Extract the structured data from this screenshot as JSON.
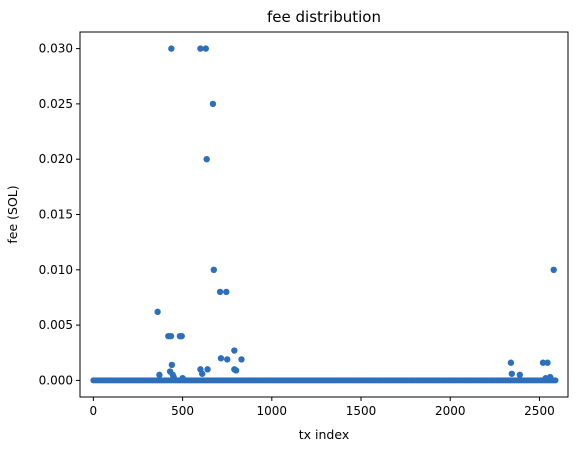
{
  "chart_data": {
    "type": "scatter",
    "title": "fee distribution",
    "xlabel": "tx index",
    "ylabel": "fee (SOL)",
    "xlim": [
      -75,
      2660
    ],
    "ylim": [
      -0.0015,
      0.0315
    ],
    "xticks": [
      0,
      500,
      1000,
      1500,
      2000,
      2500
    ],
    "xtick_labels": [
      "0",
      "500",
      "1000",
      "1500",
      "2000",
      "2500"
    ],
    "yticks": [
      0.0,
      0.005,
      0.01,
      0.015,
      0.02,
      0.025,
      0.03
    ],
    "ytick_labels": [
      "0.000",
      "0.005",
      "0.010",
      "0.015",
      "0.020",
      "0.025",
      "0.030"
    ],
    "grid": false,
    "marker_color": "#2c6fbb",
    "baseline": {
      "x_start": 0,
      "x_end": 2590,
      "step": 10,
      "y": 5e-06
    },
    "points": [
      {
        "x": 360,
        "y": 0.0062
      },
      {
        "x": 370,
        "y": 0.0005
      },
      {
        "x": 420,
        "y": 0.004
      },
      {
        "x": 435,
        "y": 0.004
      },
      {
        "x": 440,
        "y": 0.0014
      },
      {
        "x": 430,
        "y": 0.0008
      },
      {
        "x": 445,
        "y": 0.0005
      },
      {
        "x": 450,
        "y": 0.0003
      },
      {
        "x": 437,
        "y": 0.03
      },
      {
        "x": 485,
        "y": 0.004
      },
      {
        "x": 495,
        "y": 0.004
      },
      {
        "x": 500,
        "y": 0.0002
      },
      {
        "x": 600,
        "y": 0.03
      },
      {
        "x": 630,
        "y": 0.03
      },
      {
        "x": 635,
        "y": 0.02
      },
      {
        "x": 600,
        "y": 0.001
      },
      {
        "x": 610,
        "y": 0.0006
      },
      {
        "x": 640,
        "y": 0.001
      },
      {
        "x": 670,
        "y": 0.025
      },
      {
        "x": 675,
        "y": 0.01
      },
      {
        "x": 710,
        "y": 0.008
      },
      {
        "x": 745,
        "y": 0.008
      },
      {
        "x": 715,
        "y": 0.002
      },
      {
        "x": 750,
        "y": 0.0019
      },
      {
        "x": 790,
        "y": 0.0027
      },
      {
        "x": 790,
        "y": 0.001
      },
      {
        "x": 800,
        "y": 0.0009
      },
      {
        "x": 830,
        "y": 0.0019
      },
      {
        "x": 2340,
        "y": 0.0016
      },
      {
        "x": 2345,
        "y": 0.0006
      },
      {
        "x": 2390,
        "y": 0.0005
      },
      {
        "x": 2520,
        "y": 0.0016
      },
      {
        "x": 2545,
        "y": 0.0016
      },
      {
        "x": 2560,
        "y": 0.0003
      },
      {
        "x": 2535,
        "y": 0.0002
      },
      {
        "x": 2580,
        "y": 0.01
      }
    ]
  }
}
